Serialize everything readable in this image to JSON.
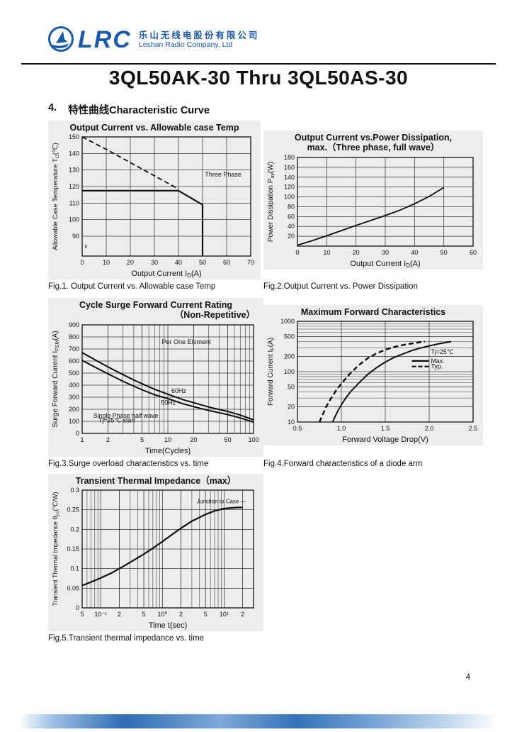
{
  "header": {
    "logo_text": "LRC",
    "company_cn": "乐山无线电股份有限公司",
    "company_en": "Leshan Radio Company, Ltd",
    "brand_color": "#1a5aa8"
  },
  "title": "3QL50AK-30 Thru 3QL50AS-30",
  "section": {
    "number": "4.",
    "heading": "特性曲线Characteristic Curve"
  },
  "captions": {
    "fig1": "Fig.1. Output Current vs. Allowable case Temp",
    "fig2": "Fig.2.Output Current vs. Power Dissipation",
    "fig3": "Fig.3.Surge overload characteristics vs. time",
    "fig4": "Fig.4.Forward characteristics of a diode arm",
    "fig5": "Fig.5.Transient thermal impedance vs. time"
  },
  "page": {
    "number": "4"
  },
  "chart_data": [
    {
      "id": "fig1",
      "type": "line",
      "title": "Output Current vs. Allowable case Temp",
      "xlabel": "Output Current I_{D}(A)",
      "ylabel": "Allowable Case Temperature T_{C}(℃)",
      "ylsize": 9.5,
      "xscale": "linear",
      "yscale": "linear",
      "xlim": [
        0,
        70
      ],
      "ylim": [
        78,
        150
      ],
      "xticks": [
        {
          "v": 0,
          "l": "0"
        },
        {
          "v": 10,
          "l": "10"
        },
        {
          "v": 20,
          "l": "20"
        },
        {
          "v": 30,
          "l": "30"
        },
        {
          "v": 40,
          "l": "40"
        },
        {
          "v": 50,
          "l": "50"
        },
        {
          "v": 60,
          "l": "60"
        },
        {
          "v": 70,
          "l": "70"
        }
      ],
      "yticks": [
        {
          "v": 90,
          "l": "90"
        },
        {
          "v": 100,
          "l": "100"
        },
        {
          "v": 110,
          "l": "110"
        },
        {
          "v": 120,
          "l": "120"
        },
        {
          "v": 130,
          "l": "130"
        },
        {
          "v": 140,
          "l": "140"
        },
        {
          "v": 150,
          "l": "150"
        }
      ],
      "series": [
        {
          "name": "single-phase-dashed",
          "style": "dashed",
          "w": 1.8,
          "points": [
            [
              0,
              150
            ],
            [
              10,
              142.5
            ],
            [
              20,
              134.5
            ],
            [
              30,
              126.5
            ],
            [
              40,
              118.5
            ]
          ]
        },
        {
          "name": "three-phase-solid",
          "style": "solid",
          "w": 2.2,
          "points": [
            [
              0,
              117.5
            ],
            [
              40,
              117.5
            ],
            [
              50,
              109
            ],
            [
              50,
              78
            ]
          ]
        }
      ],
      "annotations": [
        {
          "x": 51,
          "y": 126,
          "text": "Three Phase",
          "size": 9
        },
        {
          "x": 0.6,
          "y": 83.5,
          "text": "≈",
          "rotate": 75,
          "size": 10,
          "anchor": "middle"
        }
      ]
    },
    {
      "id": "fig2",
      "type": "line",
      "title": "Output Current vs.Power Dissipation,",
      "title2": "max.（Three phase, full wave）",
      "xlabel": "Output Current I_{D}(A)",
      "ylabel": "Power Dissipation P_{av}(W)",
      "xscale": "linear",
      "yscale": "linear",
      "xlim": [
        0,
        60
      ],
      "ylim": [
        0,
        180
      ],
      "xticks": [
        {
          "v": 0,
          "l": "0"
        },
        {
          "v": 10,
          "l": "10"
        },
        {
          "v": 20,
          "l": "20"
        },
        {
          "v": 30,
          "l": "30"
        },
        {
          "v": 40,
          "l": "40"
        },
        {
          "v": 50,
          "l": "50"
        },
        {
          "v": 60,
          "l": "60"
        }
      ],
      "yticks": [
        {
          "v": 20,
          "l": "20"
        },
        {
          "v": 40,
          "l": "40"
        },
        {
          "v": 60,
          "l": "60"
        },
        {
          "v": 80,
          "l": "80"
        },
        {
          "v": 100,
          "l": "100"
        },
        {
          "v": 120,
          "l": "120"
        },
        {
          "v": 140,
          "l": "140"
        },
        {
          "v": 160,
          "l": "160"
        },
        {
          "v": 180,
          "l": "180"
        }
      ],
      "series": [
        {
          "name": "power-dissipation",
          "style": "solid",
          "w": 1.8,
          "points": [
            [
              0,
              2
            ],
            [
              5,
              11
            ],
            [
              10,
              21
            ],
            [
              15,
              31.5
            ],
            [
              20,
              42
            ],
            [
              25,
              52
            ],
            [
              30,
              62
            ],
            [
              35,
              73
            ],
            [
              40,
              86
            ],
            [
              45,
              101
            ],
            [
              50,
              119
            ]
          ]
        }
      ],
      "annotations": []
    },
    {
      "id": "fig3",
      "type": "line",
      "title": "Cycle Surge Forward Current Rating",
      "title2": "（Non-Repetitive）",
      "xlabel": "Time(Cycles)",
      "ylabel": "Surge Forward Current I_{FSM}(A)",
      "xscale": "log",
      "yscale": "linear",
      "xlim": [
        1,
        100
      ],
      "ylim": [
        0,
        900
      ],
      "xticks": [
        {
          "v": 1,
          "l": "1"
        },
        {
          "v": 2,
          "l": "2"
        },
        {
          "v": 5,
          "l": "5"
        },
        {
          "v": 10,
          "l": "10"
        },
        {
          "v": 20,
          "l": "20"
        },
        {
          "v": 50,
          "l": "50"
        },
        {
          "v": 100,
          "l": "100"
        }
      ],
      "yticks": [
        {
          "v": 0,
          "l": "0"
        },
        {
          "v": 100,
          "l": "100"
        },
        {
          "v": 200,
          "l": "200"
        },
        {
          "v": 300,
          "l": "300"
        },
        {
          "v": 400,
          "l": "400"
        },
        {
          "v": 500,
          "l": "500"
        },
        {
          "v": 600,
          "l": "600"
        },
        {
          "v": 700,
          "l": "700"
        },
        {
          "v": 800,
          "l": "800"
        },
        {
          "v": 900,
          "l": "900"
        }
      ],
      "series": [
        {
          "name": "surge-60hz",
          "style": "solid",
          "w": 2,
          "points": [
            [
              1,
              670
            ],
            [
              1.5,
              600
            ],
            [
              2,
              552
            ],
            [
              3,
              487
            ],
            [
              4,
              443
            ],
            [
              5,
              412
            ],
            [
              7,
              366
            ],
            [
              10,
              325
            ],
            [
              15,
              280
            ],
            [
              20,
              255
            ],
            [
              30,
              219
            ],
            [
              50,
              182
            ],
            [
              70,
              152
            ],
            [
              100,
              112
            ]
          ]
        },
        {
          "name": "surge-50hz",
          "style": "solid",
          "w": 2,
          "points": [
            [
              1,
              605
            ],
            [
              1.5,
              540
            ],
            [
              2,
              494
            ],
            [
              3,
              432
            ],
            [
              4,
              392
            ],
            [
              5,
              362
            ],
            [
              7,
              320
            ],
            [
              10,
              288
            ],
            [
              15,
              246
            ],
            [
              20,
              222
            ],
            [
              30,
              190
            ],
            [
              50,
              156
            ],
            [
              70,
              128
            ],
            [
              100,
              93
            ]
          ]
        }
      ],
      "annotations": [
        {
          "x": 8.5,
          "y": 740,
          "text": "Per One Element",
          "size": 9
        },
        {
          "x": 11,
          "y": 335,
          "text": "60Hz",
          "size": 9
        },
        {
          "x": 8.3,
          "y": 238,
          "text": "50Hz",
          "size": 9
        },
        {
          "x": 1.35,
          "y": 128,
          "text": "Single Phase   half wave",
          "size": 8.8
        },
        {
          "x": 1.55,
          "y": 92,
          "text": "Tj=25℃   start",
          "size": 8.8
        }
      ]
    },
    {
      "id": "fig4",
      "type": "line",
      "title": "Maximum Forward Characteristics",
      "xlabel": "Forward Voltage Drop(V)",
      "ylabel": "Forward Current I_{F}(A)",
      "xscale": "linear",
      "yscale": "log",
      "xlim": [
        0.5,
        2.5
      ],
      "ylim": [
        10,
        1000
      ],
      "xticks": [
        {
          "v": 0.5,
          "l": "0.5"
        },
        {
          "v": 1.0,
          "l": "1.0"
        },
        {
          "v": 1.5,
          "l": "1.5"
        },
        {
          "v": 2.0,
          "l": "2.0"
        },
        {
          "v": 2.5,
          "l": "2.5"
        }
      ],
      "yticks": [
        {
          "v": 10,
          "l": "10"
        },
        {
          "v": 20,
          "l": "20"
        },
        {
          "v": 50,
          "l": "50"
        },
        {
          "v": 100,
          "l": "100"
        },
        {
          "v": 200,
          "l": "200"
        },
        {
          "v": 500,
          "l": "500"
        },
        {
          "v": 1000,
          "l": "1000"
        }
      ],
      "series": [
        {
          "name": "max-solid",
          "style": "solid",
          "w": 2,
          "points": [
            [
              0.9,
              10
            ],
            [
              0.93,
              13
            ],
            [
              0.97,
              18
            ],
            [
              1.0,
              22
            ],
            [
              1.05,
              30
            ],
            [
              1.1,
              39
            ],
            [
              1.2,
              60
            ],
            [
              1.3,
              88
            ],
            [
              1.4,
              120
            ],
            [
              1.5,
              155
            ],
            [
              1.6,
              192
            ],
            [
              1.7,
              225
            ],
            [
              1.8,
              262
            ],
            [
              1.9,
              295
            ],
            [
              2.0,
              325
            ],
            [
              2.1,
              355
            ],
            [
              2.25,
              395
            ]
          ]
        },
        {
          "name": "typ-dashed",
          "style": "dashed",
          "w": 2.4,
          "points": [
            [
              0.75,
              10
            ],
            [
              0.78,
              13
            ],
            [
              0.82,
              19
            ],
            [
              0.85,
              24
            ],
            [
              0.9,
              33
            ],
            [
              0.95,
              45
            ],
            [
              1.0,
              58
            ],
            [
              1.1,
              92
            ],
            [
              1.2,
              135
            ],
            [
              1.3,
              185
            ],
            [
              1.4,
              230
            ],
            [
              1.5,
              272
            ],
            [
              1.6,
              308
            ],
            [
              1.7,
              338
            ],
            [
              1.8,
              362
            ],
            [
              1.95,
              395
            ]
          ]
        }
      ],
      "annotations": [
        {
          "x": 2.02,
          "y": 225,
          "text": "Tj=25℃",
          "size": 8.8
        },
        {
          "x": 2.02,
          "y": 148,
          "text": "Max.",
          "size": 8.8,
          "line": "solid"
        },
        {
          "x": 2.02,
          "y": 115,
          "text": "Typ.",
          "size": 8.8,
          "line": "dashed"
        }
      ]
    },
    {
      "id": "fig5",
      "type": "line",
      "title": "Transient Thermal Impedance（max）",
      "xlabel": "Time t(sec)",
      "ylabel": "Transient Thermal Impedance θ_{j-c}(℃/W)",
      "ylsize": 9,
      "xscale": "log",
      "yscale": "linear",
      "xlim": [
        0.05,
        30
      ],
      "ylim": [
        0,
        0.3
      ],
      "xticks": [
        {
          "v": 0.05,
          "l": "5"
        },
        {
          "v": 0.1,
          "l": "10⁻¹"
        },
        {
          "v": 0.2,
          "l": "2"
        },
        {
          "v": 0.5,
          "l": "5"
        },
        {
          "v": 1,
          "l": "10⁰"
        },
        {
          "v": 2,
          "l": "2"
        },
        {
          "v": 5,
          "l": "5"
        },
        {
          "v": 10,
          "l": "10¹"
        },
        {
          "v": 20,
          "l": "2"
        }
      ],
      "yticks": [
        {
          "v": 0,
          "l": "0"
        },
        {
          "v": 0.05,
          "l": "0.05"
        },
        {
          "v": 0.1,
          "l": "0.1"
        },
        {
          "v": 0.15,
          "l": "0.15"
        },
        {
          "v": 0.2,
          "l": "0.2"
        },
        {
          "v": 0.25,
          "l": "0.25"
        },
        {
          "v": 0.3,
          "l": "0.3"
        }
      ],
      "series": [
        {
          "name": "thermal-impedance",
          "style": "solid",
          "w": 2.2,
          "points": [
            [
              0.05,
              0.057
            ],
            [
              0.07,
              0.066
            ],
            [
              0.1,
              0.076
            ],
            [
              0.15,
              0.089
            ],
            [
              0.2,
              0.1
            ],
            [
              0.3,
              0.116
            ],
            [
              0.5,
              0.137
            ],
            [
              0.7,
              0.152
            ],
            [
              1,
              0.169
            ],
            [
              1.5,
              0.189
            ],
            [
              2,
              0.203
            ],
            [
              3,
              0.221
            ],
            [
              5,
              0.238
            ],
            [
              7,
              0.247
            ],
            [
              10,
              0.253
            ],
            [
              15,
              0.2555
            ],
            [
              20,
              0.256
            ]
          ]
        }
      ],
      "annotations": [
        {
          "x": 3.6,
          "y": 0.267,
          "text": "Junction to Case —",
          "size": 8
        }
      ]
    }
  ]
}
